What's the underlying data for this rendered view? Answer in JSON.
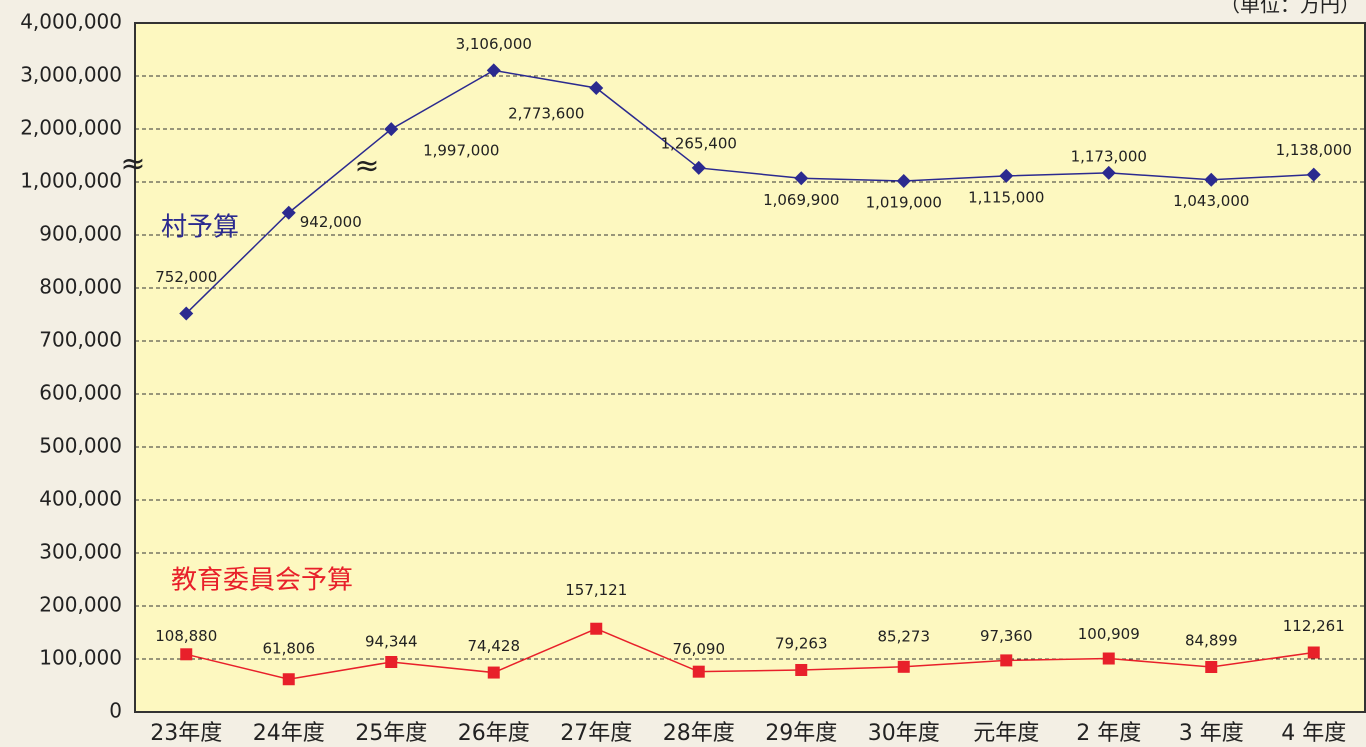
{
  "chart_data": {
    "type": "line",
    "unit_label": "（単位：万円）",
    "categories": [
      "23年度",
      "24年度",
      "25年度",
      "26年度",
      "27年度",
      "28年度",
      "29年度",
      "30年度",
      "元年度",
      "2 年度",
      "3 年度",
      "4 年度"
    ],
    "series": [
      {
        "name": "村予算",
        "color": "#2b2a8f",
        "marker": "diamond",
        "values": [
          752000,
          942000,
          1997000,
          3106000,
          2773600,
          1265400,
          1069900,
          1019000,
          1115000,
          1173000,
          1043000,
          1138000
        ],
        "value_labels": [
          "752,000",
          "942,000",
          "1,997,000",
          "3,106,000",
          "2,773,600",
          "1,265,400",
          "1,069,900",
          "1,019,000",
          "1,115,000",
          "1,173,000",
          "1,043,000",
          "1,138,000"
        ]
      },
      {
        "name": "教育委員会予算",
        "color": "#e8202a",
        "marker": "square",
        "values": [
          108880,
          61806,
          94344,
          74428,
          157121,
          76090,
          79263,
          85273,
          97360,
          100909,
          84899,
          112261
        ],
        "value_labels": [
          "108,880",
          "61,806",
          "94,344",
          "74,428",
          "157,121",
          "76,090",
          "79,263",
          "85,273",
          "97,360",
          "100,909",
          "84,899",
          "112,261"
        ]
      }
    ],
    "ylim": [
      0,
      4000000
    ],
    "yticks": [
      0,
      {
        "value": 100000,
        "label": "100,000"
      },
      {
        "value": 200000,
        "label": "200,000"
      },
      {
        "value": 300000,
        "label": "300,000"
      },
      {
        "value": 400000,
        "label": "400,000"
      },
      {
        "value": 500000,
        "label": "500,000"
      },
      {
        "value": 600000,
        "label": "600,000"
      },
      {
        "value": 700000,
        "label": "700,000"
      },
      {
        "value": 800000,
        "label": "800,000"
      },
      {
        "value": 900000,
        "label": "900,000"
      },
      {
        "value": 1000000,
        "label": "1,000,000"
      },
      {
        "value": 2000000,
        "label": "2,000,000"
      },
      {
        "value": 3000000,
        "label": "3,000,000"
      },
      {
        "value": 4000000,
        "label": "4,000,000"
      }
    ],
    "axis_break": true,
    "grid": true
  }
}
